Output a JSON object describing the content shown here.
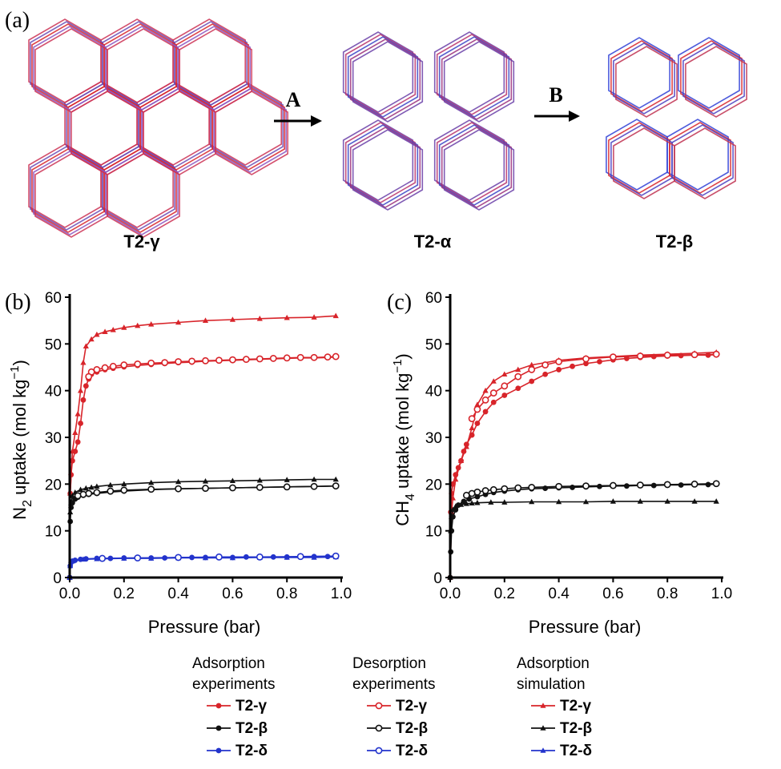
{
  "panel_a": {
    "label": "(a)",
    "structures": [
      {
        "name": "T2-γ"
      },
      {
        "name": "T2-α"
      },
      {
        "name": "T2-β"
      }
    ],
    "steps": [
      "A",
      "B"
    ]
  },
  "chart_data": [
    {
      "panel": "(b)",
      "type": "line",
      "xlabel": "Pressure (bar)",
      "ylabel_parts": [
        "N",
        "2",
        " uptake (mol kg",
        "−1",
        ")"
      ],
      "xlim": [
        0,
        1.0
      ],
      "ylim": [
        0,
        60
      ],
      "xticks": [
        "0.0",
        "0.2",
        "0.4",
        "0.6",
        "0.8",
        "1.0"
      ],
      "yticks": [
        "0",
        "10",
        "20",
        "30",
        "40",
        "50",
        "60"
      ],
      "grid": false,
      "series": [
        {
          "material": "T2-γ",
          "kind": "Adsorption simulation",
          "color": "#d8242a",
          "marker": "triangle",
          "x": [
            0,
            0.002,
            0.01,
            0.02,
            0.03,
            0.04,
            0.05,
            0.06,
            0.08,
            0.1,
            0.13,
            0.16,
            0.2,
            0.25,
            0.3,
            0.4,
            0.5,
            0.6,
            0.7,
            0.8,
            0.9,
            0.98
          ],
          "y": [
            0,
            18,
            27,
            31,
            35,
            40,
            46,
            49.5,
            51,
            52,
            52.6,
            53,
            53.5,
            53.9,
            54.2,
            54.6,
            55,
            55.2,
            55.4,
            55.6,
            55.7,
            56
          ]
        },
        {
          "material": "T2-γ",
          "kind": "Adsorption experiments",
          "color": "#d8242a",
          "marker": "circle-filled",
          "x": [
            0,
            0.002,
            0.005,
            0.01,
            0.02,
            0.03,
            0.04,
            0.05,
            0.06,
            0.07,
            0.08,
            0.1,
            0.13,
            0.16,
            0.2,
            0.25,
            0.3,
            0.35,
            0.4,
            0.45,
            0.5,
            0.55,
            0.6,
            0.65,
            0.7,
            0.75,
            0.8,
            0.85,
            0.9,
            0.95,
            0.98
          ],
          "y": [
            0,
            18,
            22,
            25,
            27,
            29,
            33,
            38,
            41,
            42.5,
            43.5,
            44,
            44.5,
            44.8,
            45.1,
            45.4,
            45.6,
            45.8,
            46,
            46.1,
            46.3,
            46.4,
            46.5,
            46.6,
            46.7,
            46.8,
            46.9,
            47,
            47,
            47.1,
            47.2
          ]
        },
        {
          "material": "T2-γ",
          "kind": "Desorption experiments",
          "color": "#d8242a",
          "marker": "circle-open",
          "x": [
            0.98,
            0.95,
            0.9,
            0.85,
            0.8,
            0.75,
            0.7,
            0.65,
            0.6,
            0.55,
            0.5,
            0.45,
            0.4,
            0.35,
            0.3,
            0.25,
            0.2,
            0.16,
            0.13,
            0.1,
            0.08,
            0.07
          ],
          "y": [
            47.3,
            47.2,
            47.1,
            47.1,
            47,
            46.9,
            46.8,
            46.7,
            46.6,
            46.5,
            46.4,
            46.3,
            46.2,
            46,
            45.9,
            45.7,
            45.5,
            45.2,
            44.9,
            44.5,
            44,
            43
          ]
        },
        {
          "material": "T2-β",
          "kind": "Adsorption simulation",
          "color": "#111111",
          "marker": "triangle",
          "x": [
            0,
            0.002,
            0.005,
            0.01,
            0.02,
            0.04,
            0.06,
            0.08,
            0.1,
            0.15,
            0.2,
            0.3,
            0.4,
            0.5,
            0.6,
            0.7,
            0.8,
            0.9,
            0.98
          ],
          "y": [
            0,
            14,
            16,
            17.5,
            18.2,
            18.8,
            19.1,
            19.3,
            19.5,
            19.8,
            20,
            20.3,
            20.5,
            20.6,
            20.7,
            20.8,
            20.9,
            21,
            21
          ]
        },
        {
          "material": "T2-β",
          "kind": "Adsorption experiments",
          "color": "#111111",
          "marker": "circle-filled",
          "x": [
            0,
            0.002,
            0.005,
            0.01,
            0.02,
            0.03,
            0.05,
            0.07,
            0.1,
            0.15,
            0.2,
            0.3,
            0.4,
            0.5,
            0.6,
            0.7,
            0.8,
            0.9,
            0.98
          ],
          "y": [
            0,
            12,
            15,
            16,
            16.8,
            17.2,
            17.6,
            17.8,
            18,
            18.3,
            18.5,
            18.8,
            19,
            19.1,
            19.2,
            19.3,
            19.4,
            19.5,
            19.6
          ]
        },
        {
          "material": "T2-β",
          "kind": "Desorption experiments",
          "color": "#111111",
          "marker": "circle-open",
          "x": [
            0.98,
            0.9,
            0.8,
            0.7,
            0.6,
            0.5,
            0.4,
            0.3,
            0.2,
            0.15,
            0.1,
            0.07,
            0.05,
            0.03
          ],
          "y": [
            19.6,
            19.5,
            19.4,
            19.3,
            19.2,
            19.1,
            19,
            18.9,
            18.7,
            18.5,
            18.2,
            18,
            17.8,
            17.5
          ]
        },
        {
          "material": "T2-δ",
          "kind": "Adsorption simulation",
          "color": "#2233cc",
          "marker": "triangle",
          "x": [
            0,
            0.002,
            0.01,
            0.05,
            0.1,
            0.2,
            0.3,
            0.4,
            0.5,
            0.6,
            0.7,
            0.8,
            0.9,
            0.98
          ],
          "y": [
            0,
            2.5,
            3.5,
            3.9,
            4,
            4.1,
            4.1,
            4.2,
            4.2,
            4.2,
            4.3,
            4.3,
            4.3,
            4.4
          ]
        },
        {
          "material": "T2-δ",
          "kind": "Adsorption experiments",
          "color": "#2233cc",
          "marker": "circle-filled",
          "x": [
            0,
            0.002,
            0.005,
            0.01,
            0.02,
            0.04,
            0.06,
            0.1,
            0.15,
            0.2,
            0.25,
            0.3,
            0.35,
            0.4,
            0.45,
            0.5,
            0.55,
            0.6,
            0.65,
            0.7,
            0.75,
            0.8,
            0.85,
            0.9,
            0.95,
            0.98
          ],
          "y": [
            0,
            2.5,
            3.2,
            3.5,
            3.7,
            3.9,
            4,
            4.1,
            4.1,
            4.2,
            4.2,
            4.2,
            4.2,
            4.3,
            4.3,
            4.3,
            4.3,
            4.3,
            4.4,
            4.4,
            4.4,
            4.4,
            4.5,
            4.5,
            4.5,
            4.5
          ]
        },
        {
          "material": "T2-δ",
          "kind": "Desorption experiments",
          "color": "#2233cc",
          "marker": "circle-open",
          "x": [
            0.98,
            0.85,
            0.7,
            0.55,
            0.4,
            0.25,
            0.12
          ],
          "y": [
            4.6,
            4.5,
            4.4,
            4.4,
            4.3,
            4.2,
            4.1
          ]
        }
      ]
    },
    {
      "panel": "(c)",
      "type": "line",
      "xlabel": "Pressure (bar)",
      "ylabel_parts": [
        "CH",
        "4",
        " uptake (mol kg",
        "−1",
        ")"
      ],
      "xlim": [
        0,
        1.0
      ],
      "ylim": [
        0,
        60
      ],
      "xticks": [
        "0.0",
        "0.2",
        "0.4",
        "0.6",
        "0.8",
        "1.0"
      ],
      "yticks": [
        "0",
        "10",
        "20",
        "30",
        "40",
        "50",
        "60"
      ],
      "grid": false,
      "series": [
        {
          "material": "T2-γ",
          "kind": "Adsorption simulation",
          "color": "#d8242a",
          "marker": "triangle",
          "x": [
            0,
            0.005,
            0.01,
            0.02,
            0.04,
            0.06,
            0.08,
            0.1,
            0.13,
            0.16,
            0.2,
            0.25,
            0.3,
            0.4,
            0.5,
            0.6,
            0.7,
            0.8,
            0.9,
            0.98
          ],
          "y": [
            0,
            14,
            17,
            21,
            25,
            28,
            32,
            37,
            40,
            42,
            43.5,
            44.5,
            45.5,
            46.5,
            47,
            47.3,
            47.6,
            47.8,
            48,
            48.2
          ]
        },
        {
          "material": "T2-γ",
          "kind": "Adsorption experiments",
          "color": "#d8242a",
          "marker": "circle-filled",
          "x": [
            0,
            0.002,
            0.005,
            0.01,
            0.02,
            0.03,
            0.04,
            0.05,
            0.06,
            0.08,
            0.1,
            0.13,
            0.16,
            0.2,
            0.25,
            0.3,
            0.35,
            0.4,
            0.45,
            0.5,
            0.55,
            0.6,
            0.65,
            0.7,
            0.75,
            0.8,
            0.85,
            0.9,
            0.95,
            0.98
          ],
          "y": [
            0,
            14,
            18,
            20,
            22,
            23.5,
            25,
            27,
            28.5,
            30.5,
            33,
            35.5,
            37.5,
            39,
            40.5,
            42,
            43.5,
            44.5,
            45.2,
            45.8,
            46.2,
            46.6,
            46.9,
            47.1,
            47.3,
            47.4,
            47.5,
            47.6,
            47.6,
            47.7
          ]
        },
        {
          "material": "T2-γ",
          "kind": "Desorption experiments",
          "color": "#d8242a",
          "marker": "circle-open",
          "x": [
            0.98,
            0.9,
            0.8,
            0.7,
            0.6,
            0.5,
            0.4,
            0.35,
            0.3,
            0.25,
            0.2,
            0.16,
            0.13,
            0.1,
            0.08
          ],
          "y": [
            47.8,
            47.7,
            47.6,
            47.4,
            47.2,
            46.8,
            46.2,
            45.5,
            44.5,
            43,
            41,
            39.5,
            38,
            36,
            34
          ]
        },
        {
          "material": "T2-β",
          "kind": "Adsorption simulation",
          "color": "#111111",
          "marker": "triangle",
          "x": [
            0,
            0.002,
            0.005,
            0.01,
            0.02,
            0.04,
            0.06,
            0.08,
            0.1,
            0.15,
            0.2,
            0.3,
            0.4,
            0.5,
            0.6,
            0.7,
            0.8,
            0.9,
            0.98
          ],
          "y": [
            0,
            10,
            13,
            14.5,
            15.2,
            15.6,
            15.8,
            15.9,
            16,
            16.1,
            16.1,
            16.2,
            16.2,
            16.2,
            16.3,
            16.3,
            16.3,
            16.3,
            16.3
          ]
        },
        {
          "material": "T2-β",
          "kind": "Adsorption experiments",
          "color": "#111111",
          "marker": "circle-filled",
          "x": [
            0,
            0.002,
            0.005,
            0.01,
            0.02,
            0.03,
            0.05,
            0.07,
            0.1,
            0.13,
            0.16,
            0.2,
            0.25,
            0.3,
            0.35,
            0.4,
            0.45,
            0.5,
            0.55,
            0.6,
            0.65,
            0.7,
            0.75,
            0.8,
            0.85,
            0.9,
            0.95,
            0.98
          ],
          "y": [
            0,
            5.5,
            10,
            13,
            14.5,
            15.5,
            16.3,
            16.8,
            17.3,
            17.8,
            18.2,
            18.5,
            18.8,
            19,
            19.1,
            19.2,
            19.3,
            19.4,
            19.5,
            19.6,
            19.6,
            19.7,
            19.7,
            19.8,
            19.8,
            19.9,
            19.9,
            20
          ]
        },
        {
          "material": "T2-β",
          "kind": "Desorption experiments",
          "color": "#111111",
          "marker": "circle-open",
          "x": [
            0.98,
            0.9,
            0.8,
            0.7,
            0.6,
            0.5,
            0.4,
            0.3,
            0.25,
            0.2,
            0.16,
            0.13,
            0.1,
            0.08,
            0.06
          ],
          "y": [
            20.1,
            20,
            19.9,
            19.8,
            19.7,
            19.6,
            19.5,
            19.3,
            19.2,
            19,
            18.8,
            18.6,
            18.3,
            18,
            17.6
          ]
        }
      ]
    }
  ],
  "legend": {
    "columns": [
      {
        "heading_lines": [
          "Adsorption",
          "experiments"
        ],
        "marker": "circle-filled",
        "entries": [
          {
            "name": "T2-γ",
            "color": "#d8242a"
          },
          {
            "name": "T2-β",
            "color": "#111111"
          },
          {
            "name": "T2-δ",
            "color": "#2233cc"
          }
        ]
      },
      {
        "heading_lines": [
          "Desorption",
          "experiments"
        ],
        "marker": "circle-open",
        "entries": [
          {
            "name": "T2-γ",
            "color": "#d8242a"
          },
          {
            "name": "T2-β",
            "color": "#111111"
          },
          {
            "name": "T2-δ",
            "color": "#2233cc"
          }
        ]
      },
      {
        "heading_lines": [
          "Adsorption",
          "simulation"
        ],
        "marker": "triangle",
        "entries": [
          {
            "name": "T2-γ",
            "color": "#d8242a"
          },
          {
            "name": "T2-β",
            "color": "#111111"
          },
          {
            "name": "T2-δ",
            "color": "#2233cc"
          }
        ]
      }
    ]
  }
}
